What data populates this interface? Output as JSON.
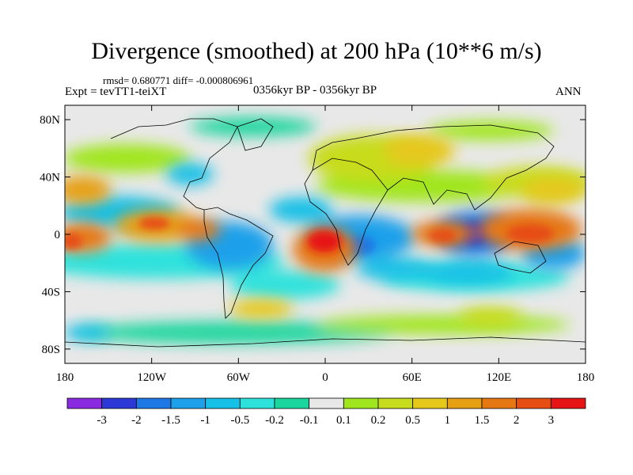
{
  "title": "Divergence (smoothed) at 200 hPa (10**6 m/s)",
  "stats": "rmsd= 0.680771 diff= -0.000806961",
  "experiment": "Expt = tevTT1-teiXT",
  "period": "0356kyr BP - 0356kyr BP",
  "season": "ANN",
  "axes": {
    "x_ticks": [
      {
        "value": -180,
        "label": "180"
      },
      {
        "value": -120,
        "label": "120W"
      },
      {
        "value": -60,
        "label": "60W"
      },
      {
        "value": 0,
        "label": "0"
      },
      {
        "value": 60,
        "label": "60E"
      },
      {
        "value": 120,
        "label": "120E"
      },
      {
        "value": 180,
        "label": "180"
      }
    ],
    "y_ticks": [
      {
        "value": 80,
        "label": "80N"
      },
      {
        "value": 40,
        "label": "40N"
      },
      {
        "value": 0,
        "label": "0"
      },
      {
        "value": -40,
        "label": "40S"
      },
      {
        "value": -80,
        "label": "80S"
      }
    ],
    "lon_range": [
      -180,
      180
    ],
    "lat_range": [
      -90,
      90
    ]
  },
  "colorbar": {
    "colors": [
      "#8a2be2",
      "#2c39d6",
      "#1e78e6",
      "#1ea0ea",
      "#16c0e6",
      "#2ee2dc",
      "#1ad69e",
      "#e8e8e8",
      "#a0e61e",
      "#c8dc1e",
      "#e6c81a",
      "#e6a014",
      "#e67814",
      "#e64e14",
      "#e61414"
    ],
    "labels": [
      "-3",
      "-2",
      "-1.5",
      "-1",
      "-0.5",
      "-0.2",
      "-0.1",
      "0.1",
      "0.2",
      "0.5",
      "1",
      "1.5",
      "2",
      "3"
    ]
  },
  "chart_data": {
    "type": "heatmap",
    "title": "Divergence (smoothed) at 200 hPa (10**6 m/s)",
    "variable": "divergence",
    "units": "10**6 m/s",
    "levels": [
      -3,
      -2,
      -1.5,
      -1,
      -0.5,
      -0.2,
      -0.1,
      0.1,
      0.2,
      0.5,
      1,
      1.5,
      2,
      3
    ],
    "features": [
      {
        "lon": 5,
        "lat": -5,
        "value": 2.5
      },
      {
        "lon": 140,
        "lat": 0,
        "value": 2.2
      },
      {
        "lon": 80,
        "lat": -3,
        "value": 2.0
      },
      {
        "lon": -125,
        "lat": 10,
        "value": 1.5
      },
      {
        "lon": -75,
        "lat": 2,
        "value": 1.4
      },
      {
        "lon": -178,
        "lat": -5,
        "value": 1.8
      },
      {
        "lon": -165,
        "lat": 35,
        "value": 1.2
      },
      {
        "lon": -120,
        "lat": -20,
        "value": 0.8
      },
      {
        "lon": -35,
        "lat": -25,
        "value": 1.0
      },
      {
        "lon": 60,
        "lat": 45,
        "value": 0.6
      },
      {
        "lon": 150,
        "lat": 30,
        "value": 0.8
      },
      {
        "lon": 110,
        "lat": 5,
        "value": -2.5
      },
      {
        "lon": 30,
        "lat": 0,
        "value": -1.8
      },
      {
        "lon": -60,
        "lat": -10,
        "value": -1.2
      },
      {
        "lon": -150,
        "lat": 10,
        "value": -1.2
      },
      {
        "lon": -15,
        "lat": 15,
        "value": -0.8
      },
      {
        "lon": 60,
        "lat": -20,
        "value": -0.8
      }
    ]
  }
}
